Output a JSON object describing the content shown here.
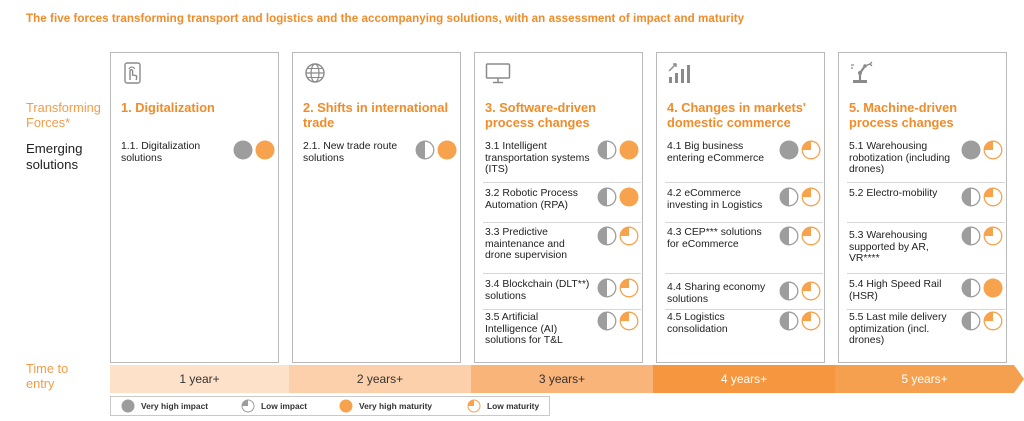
{
  "title": "The five forces transforming transport and logistics and the accompanying solutions, with an assessment of impact and maturity",
  "side_labels": {
    "forces": "Transforming Forces*",
    "solutions": "Emerging solutions",
    "time": "Time to entry"
  },
  "colors": {
    "accent": "#f08c2a",
    "maturity": "#f7a24c",
    "impact": "#9d9d9d",
    "grid": "#b9b9b9"
  },
  "forces": [
    {
      "icon": "hand-touch-icon",
      "heading": "1. Digitalization",
      "items": [
        {
          "label": "1.1. Digitalization solutions",
          "impact": "very_high",
          "maturity": "very_high"
        }
      ]
    },
    {
      "icon": "globe-icon",
      "heading": "2. Shifts in international trade",
      "items": [
        {
          "label": "2.1. New trade route solutions",
          "impact": "low",
          "maturity": "very_high"
        }
      ]
    },
    {
      "icon": "monitor-icon",
      "heading": "3. Software-driven process changes",
      "items": [
        {
          "label": "3.1 Intelligent transportation systems (ITS)",
          "impact": "low",
          "maturity": "very_high"
        },
        {
          "label": "3.2 Robotic Process Automation (RPA)",
          "impact": "low",
          "maturity": "very_high"
        },
        {
          "label": "3.3 Predictive maintenance and drone supervision",
          "impact": "low",
          "maturity": "low"
        },
        {
          "label": "3.4 Blockchain (DLT**) solutions",
          "impact": "low",
          "maturity": "low"
        },
        {
          "label": "3.5 Artificial Intelligence (AI) solutions for T&L",
          "impact": "low",
          "maturity": "low"
        }
      ]
    },
    {
      "icon": "bar-chart-icon",
      "heading": "4. Changes in markets' domestic commerce",
      "items": [
        {
          "label": "4.1 Big business entering eCommerce",
          "impact": "very_high",
          "maturity": "low"
        },
        {
          "label": "4.2 eCommerce investing in Logistics",
          "impact": "low",
          "maturity": "low"
        },
        {
          "label": "4.3 CEP*** solutions for eCommerce",
          "impact": "low",
          "maturity": "low"
        },
        {
          "label": "4.4 Sharing economy solutions",
          "impact": "low",
          "maturity": "low"
        },
        {
          "label": "4.5 Logistics consolidation",
          "impact": "low",
          "maturity": "low"
        }
      ]
    },
    {
      "icon": "robot-arm-icon",
      "heading": "5. Machine-driven process changes",
      "items": [
        {
          "label": "5.1 Warehousing robotization (including drones)",
          "impact": "very_high",
          "maturity": "low"
        },
        {
          "label": "5.2 Electro-mobility",
          "impact": "low",
          "maturity": "low"
        },
        {
          "label": "5.3 Warehousing supported by AR, VR****",
          "impact": "low",
          "maturity": "low"
        },
        {
          "label": "5.4 High Speed Rail (HSR)",
          "impact": "low",
          "maturity": "very_high"
        },
        {
          "label": "5.5 Last mile delivery optimization (incl. drones)",
          "impact": "low",
          "maturity": "low"
        }
      ]
    }
  ],
  "time_segments": [
    {
      "label": "1 year+",
      "color": "#fde1c8"
    },
    {
      "label": "2 years+",
      "color": "#fcd0aa"
    },
    {
      "label": "3 years+",
      "color": "#f9b47a"
    },
    {
      "label": "4 years+",
      "color": "#f6963f"
    },
    {
      "label": "5 years+",
      "color": "#f5a04e"
    }
  ],
  "legend": [
    {
      "label": "Very high impact",
      "kind": "impact",
      "level": "very_high"
    },
    {
      "label": "Low impact",
      "kind": "impact",
      "level": "low"
    },
    {
      "label": "Very high maturity",
      "kind": "maturity",
      "level": "very_high"
    },
    {
      "label": "Low maturity",
      "kind": "maturity",
      "level": "low"
    }
  ]
}
